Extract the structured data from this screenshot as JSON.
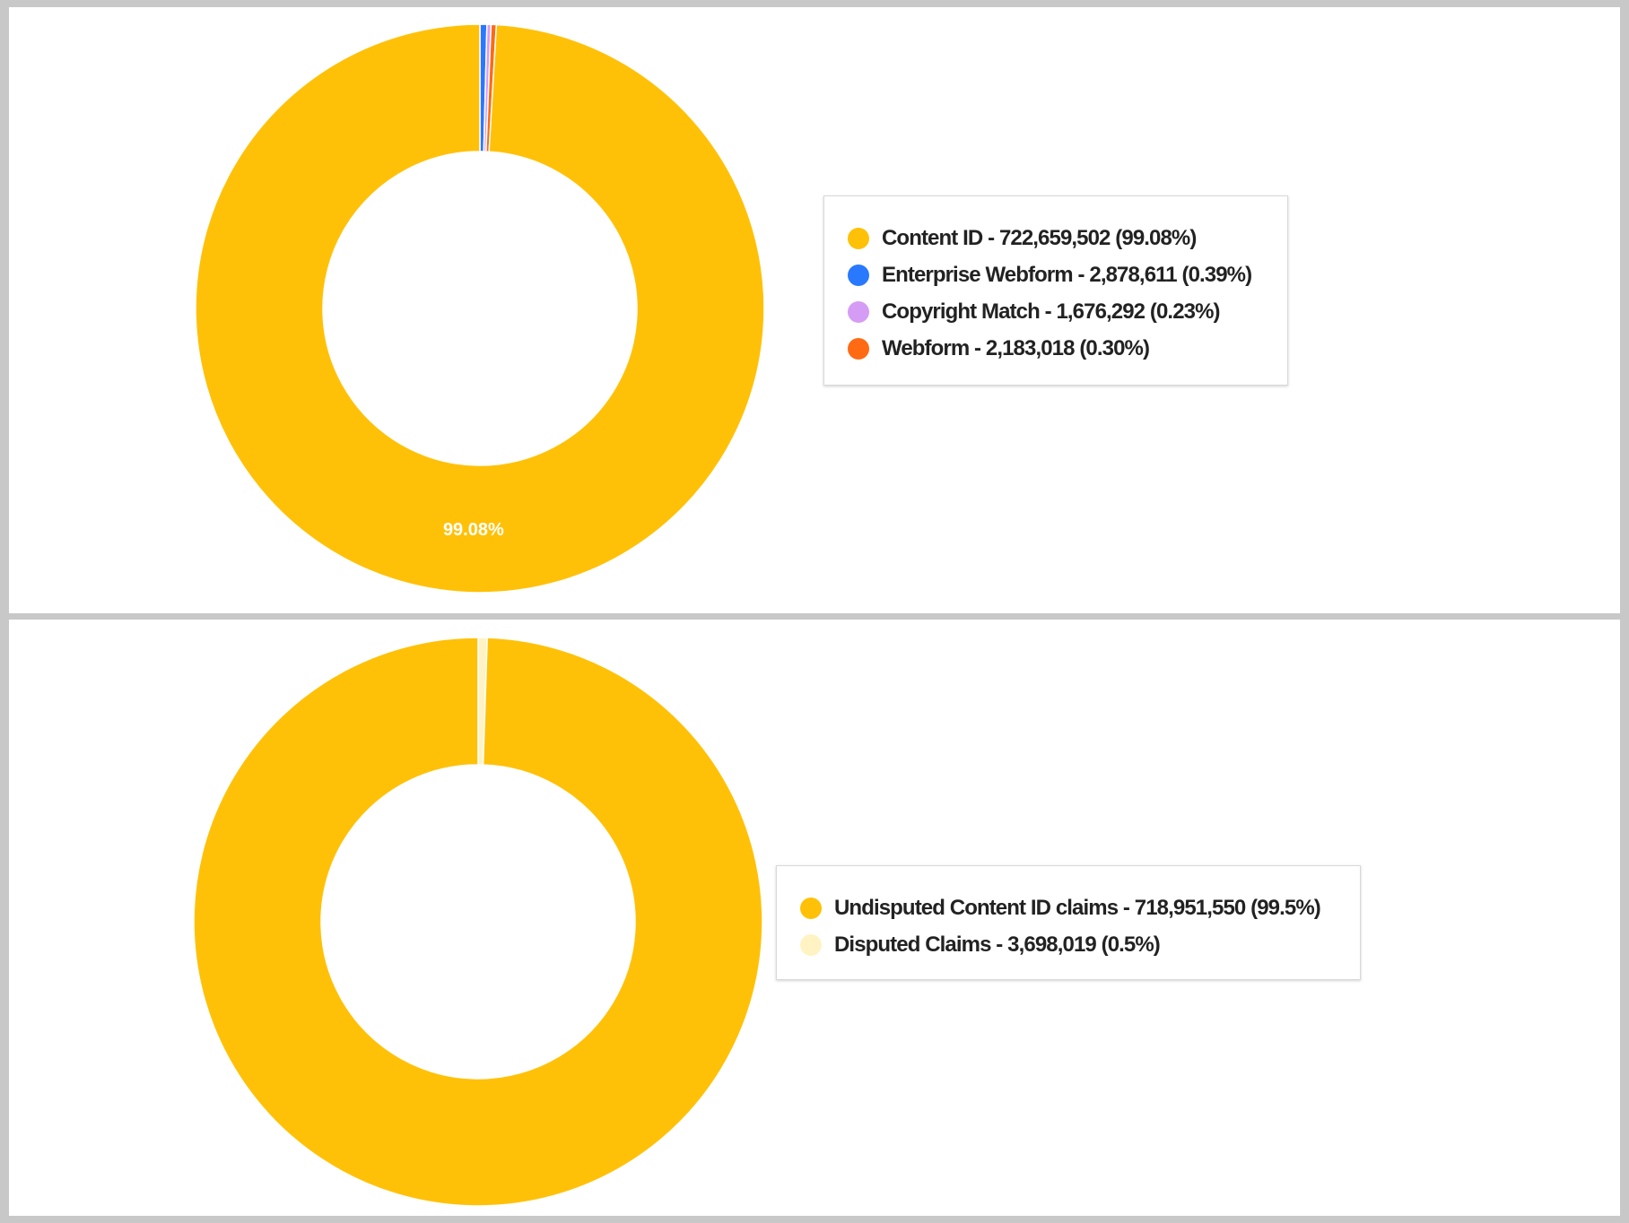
{
  "chart_data": [
    {
      "type": "pie",
      "title": "",
      "donut": true,
      "slice_label_visible": "99.08%",
      "legend_position": "right",
      "slices": [
        {
          "label": "Content ID - 722,659,502 (99.08%)",
          "name": "Content ID",
          "value": 722659502,
          "percent": 99.08,
          "color": "#ffc107"
        },
        {
          "label": "Enterprise Webform - 2,878,611 (0.39%)",
          "name": "Enterprise Webform",
          "value": 2878611,
          "percent": 0.39,
          "color": "#2979ff"
        },
        {
          "label": "Copyright Match - 1,676,292 (0.23%)",
          "name": "Copyright Match",
          "value": 1676292,
          "percent": 0.23,
          "color": "#d59cf5"
        },
        {
          "label": "Webform - 2,183,018 (0.30%)",
          "name": "Webform",
          "value": 2183018,
          "percent": 0.3,
          "color": "#ff6a13"
        }
      ]
    },
    {
      "type": "pie",
      "title": "",
      "donut": true,
      "legend_position": "right",
      "slices": [
        {
          "label": "Undisputed Content ID claims -  718,951,550 (99.5%)",
          "name": "Undisputed Content ID claims",
          "value": 718951550,
          "percent": 99.5,
          "color": "#ffc107"
        },
        {
          "label": "Disputed Claims - 3,698,019 (0.5%)",
          "name": "Disputed Claims",
          "value": 3698019,
          "percent": 0.5,
          "color": "#fff3c4"
        }
      ]
    }
  ]
}
